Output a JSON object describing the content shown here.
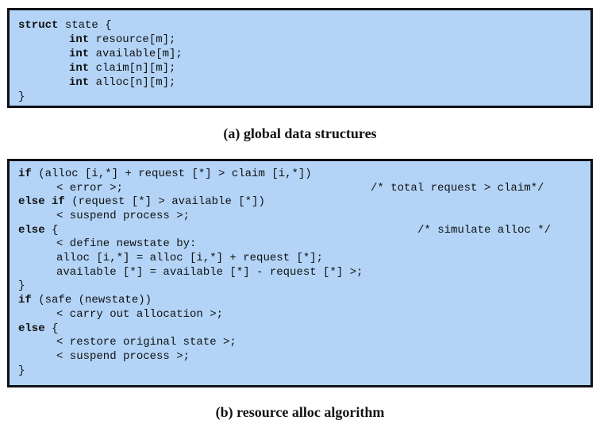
{
  "global_data_structures": {
    "caption": "(a) global data structures",
    "lines": [
      [
        {
          "t": "struct",
          "kw": true
        },
        {
          "t": " state {",
          "kw": false
        }
      ],
      [
        {
          "t": "int",
          "kw": true
        },
        {
          "t": " resource[m];",
          "kw": false
        }
      ],
      [
        {
          "t": "int",
          "kw": true
        },
        {
          "t": " available[m];",
          "kw": false
        }
      ],
      [
        {
          "t": "int",
          "kw": true
        },
        {
          "t": " claim[n][m];",
          "kw": false
        }
      ],
      [
        {
          "t": "int",
          "kw": true
        },
        {
          "t": " alloc[n][m];",
          "kw": false
        }
      ],
      [
        {
          "t": "}",
          "kw": false
        }
      ]
    ]
  },
  "resource_alloc_algorithm": {
    "caption": "(b) resource alloc algorithm",
    "lines": [
      [
        {
          "t": "if",
          "kw": true
        },
        {
          "t": " (alloc [i,*] + request [*] > claim [i,*])",
          "kw": false
        }
      ],
      [
        {
          "t": "< error >;",
          "kw": false
        }
      ],
      [
        {
          "t": "/* total request > claim*/",
          "kw": false
        }
      ],
      [
        {
          "t": "else if",
          "kw": true
        },
        {
          "t": " (request [*] > available [*])",
          "kw": false
        }
      ],
      [
        {
          "t": "< suspend process >;",
          "kw": false
        }
      ],
      [
        {
          "t": "else",
          "kw": true
        },
        {
          "t": " {",
          "kw": false
        }
      ],
      [
        {
          "t": "/* simulate alloc */",
          "kw": false
        }
      ],
      [
        {
          "t": "< define newstate by:",
          "kw": false
        }
      ],
      [
        {
          "t": "alloc [i,*] = alloc [i,*] + request [*];",
          "kw": false
        }
      ],
      [
        {
          "t": "available [*] = available [*] - request [*] >;",
          "kw": false
        }
      ],
      [
        {
          "t": "}",
          "kw": false
        }
      ],
      [
        {
          "t": "if",
          "kw": true
        },
        {
          "t": " (safe (newstate))",
          "kw": false
        }
      ],
      [
        {
          "t": "< carry out allocation >;",
          "kw": false
        }
      ],
      [
        {
          "t": "else",
          "kw": true
        },
        {
          "t": " {",
          "kw": false
        }
      ],
      [
        {
          "t": "< restore original state >;",
          "kw": false
        }
      ],
      [
        {
          "t": "< suspend process >;",
          "kw": false
        }
      ],
      [
        {
          "t": "}",
          "kw": false
        }
      ]
    ]
  }
}
